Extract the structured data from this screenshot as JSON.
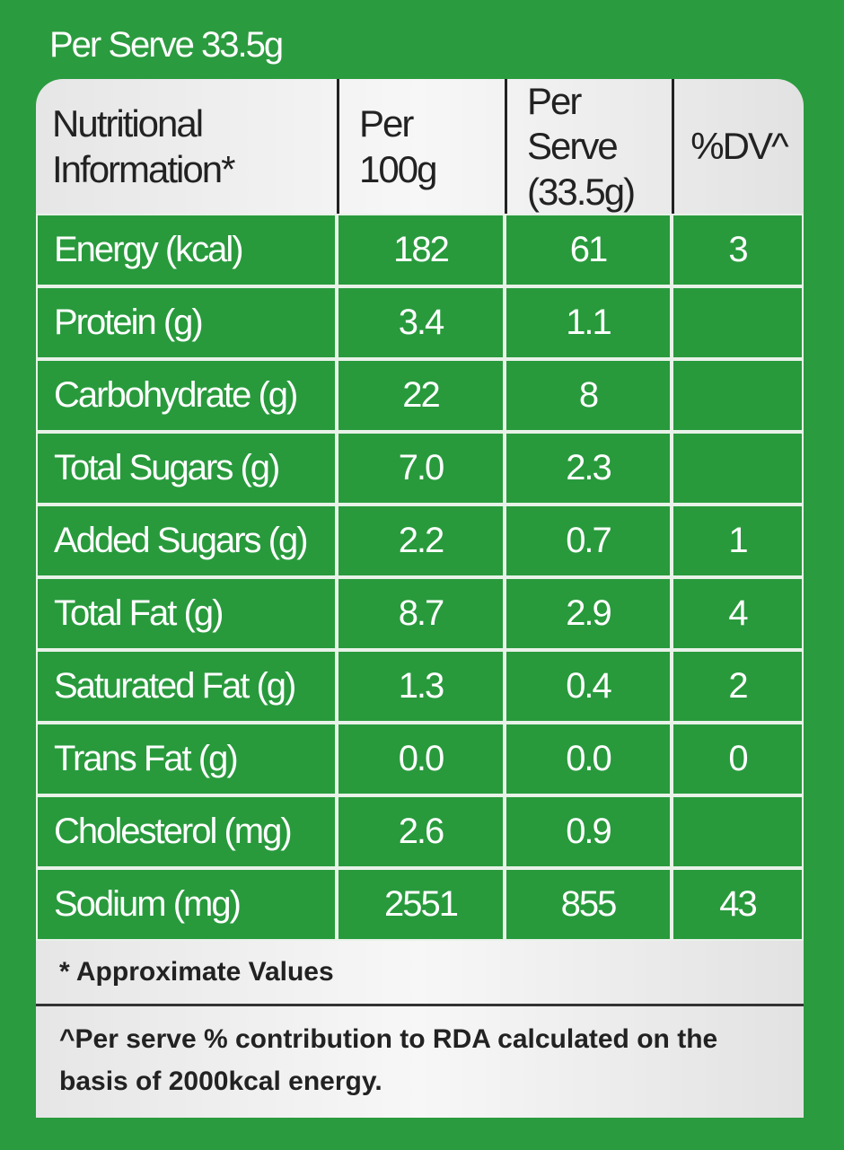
{
  "title": "Per Serve 33.5g",
  "table": {
    "header": [
      [
        "Nutritional",
        "Information*"
      ],
      [
        "Per",
        "100g"
      ],
      [
        "Per Serve",
        "(33.5g)"
      ],
      [
        "%DV^"
      ]
    ],
    "rows": [
      {
        "name": "Energy (kcal)",
        "per100": "182",
        "perServe": "61",
        "dv": "3"
      },
      {
        "name": "Protein (g)",
        "per100": "3.4",
        "perServe": "1.1"
      },
      {
        "name": "Carbohydrate (g)",
        "per100": "22",
        "perServe": "8"
      },
      {
        "name": "Total Sugars (g)",
        "per100": "7.0",
        "perServe": "2.3"
      },
      {
        "name": "Added Sugars (g)",
        "per100": "2.2",
        "perServe": "0.7",
        "dv": "1"
      },
      {
        "name": "Total Fat (g)",
        "per100": "8.7",
        "perServe": "2.9",
        "dv": "4"
      },
      {
        "name": "Saturated Fat (g)",
        "per100": "1.3",
        "perServe": "0.4",
        "dv": "2"
      },
      {
        "name": "Trans Fat (g)",
        "per100": "0.0",
        "perServe": "0.0",
        "dv": "0"
      },
      {
        "name": "Cholesterol (mg)",
        "per100": "2.6",
        "perServe": "0.9"
      },
      {
        "name": "Sodium (mg)",
        "per100": "2551",
        "perServe": "855",
        "dv": "43"
      }
    ]
  },
  "footer": {
    "approx": "* Approximate Values",
    "note": "^Per serve % contribution to RDA calculated on the basis of 2000kcal energy."
  }
}
